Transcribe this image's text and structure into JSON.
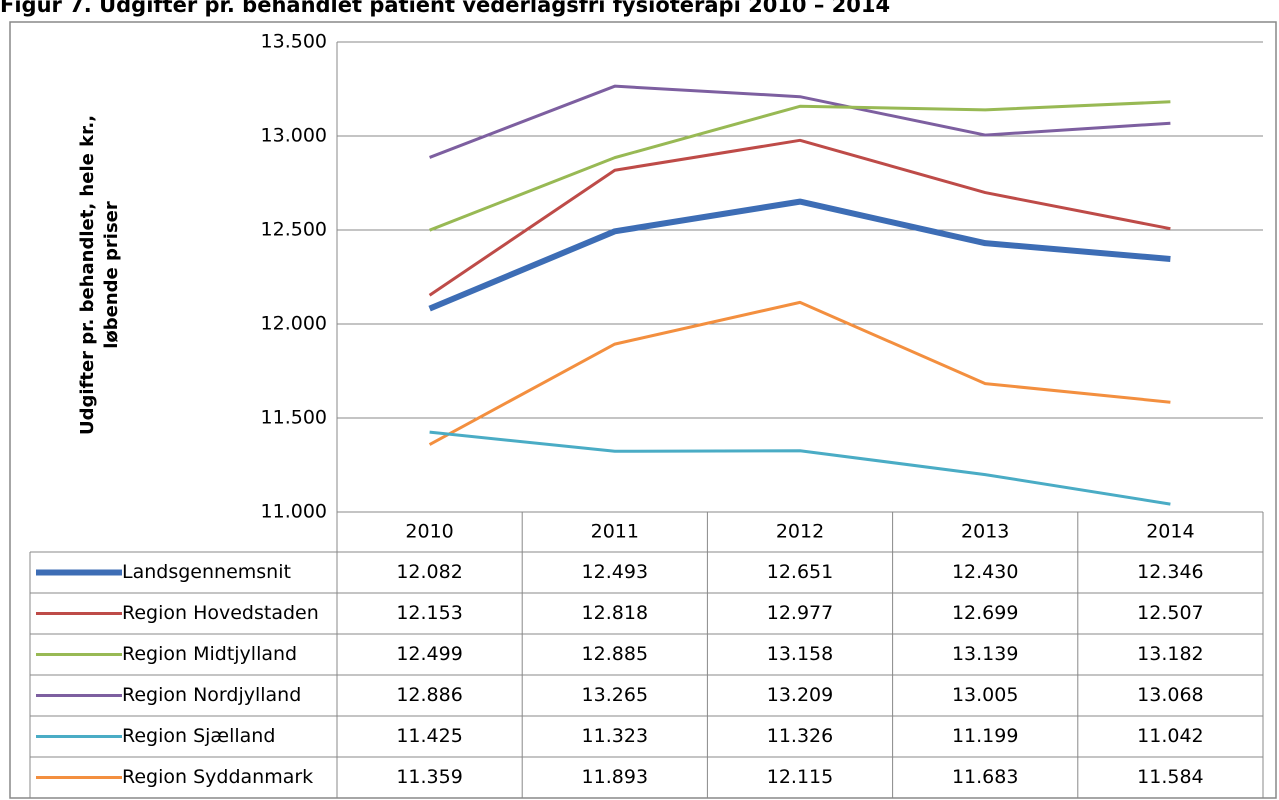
{
  "chart_data": {
    "type": "line",
    "title": "Figur 7. Udgifter pr. behandlet patient vederlagsfri fysioterapi 2010 – 2014",
    "ylabel": [
      "Udgifter pr. behandlet, hele kr.,",
      "løbende priser"
    ],
    "categories": [
      "2010",
      "2011",
      "2012",
      "2013",
      "2014"
    ],
    "ylim": [
      11000,
      13500
    ],
    "yticks": [
      {
        "value": 11000,
        "label": "11.000"
      },
      {
        "value": 11500,
        "label": "11.500"
      },
      {
        "value": 12000,
        "label": "12.000"
      },
      {
        "value": 12500,
        "label": "12.500"
      },
      {
        "value": 13000,
        "label": "13.000"
      },
      {
        "value": 13500,
        "label": "13.500"
      }
    ],
    "grid": true,
    "series": [
      {
        "name": "Landsgennemsnit",
        "color": "#3d6db5",
        "values": [
          12082,
          12493,
          12651,
          12430,
          12346
        ],
        "value_labels": [
          "12.082",
          "12.493",
          "12.651",
          "12.430",
          "12.346"
        ]
      },
      {
        "name": "Region Hovedstaden",
        "color": "#be4b48",
        "values": [
          12153,
          12818,
          12977,
          12699,
          12507
        ],
        "value_labels": [
          "12.153",
          "12.818",
          "12.977",
          "12.699",
          "12.507"
        ]
      },
      {
        "name": "Region Midtjylland",
        "color": "#98b954",
        "values": [
          12499,
          12885,
          13158,
          13139,
          13182
        ],
        "value_labels": [
          "12.499",
          "12.885",
          "13.158",
          "13.139",
          "13.182"
        ]
      },
      {
        "name": "Region Nordjylland",
        "color": "#7d5fa0",
        "values": [
          12886,
          13265,
          13209,
          13005,
          13068
        ],
        "value_labels": [
          "12.886",
          "13.265",
          "13.209",
          "13.005",
          "13.068"
        ]
      },
      {
        "name": "Region Sjælland",
        "color": "#4aacc5",
        "values": [
          11425,
          11323,
          11326,
          11199,
          11042
        ],
        "value_labels": [
          "11.425",
          "11.323",
          "11.326",
          "11.199",
          "11.042"
        ]
      },
      {
        "name": "Region Syddanmark",
        "color": "#f38f3f",
        "values": [
          11359,
          11893,
          12115,
          11683,
          11584
        ],
        "value_labels": [
          "11.359",
          "11.893",
          "12.115",
          "11.683",
          "11.584"
        ]
      }
    ]
  }
}
